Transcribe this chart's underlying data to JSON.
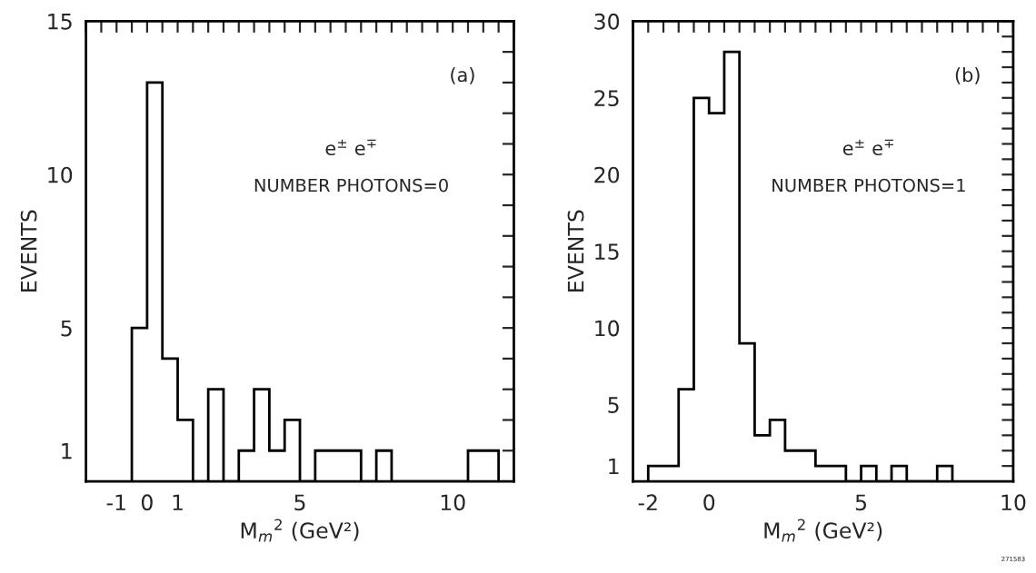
{
  "chart_data": [
    {
      "type": "histogram",
      "xlabel": "M$_{m}$$^{2}$ (GeV²)",
      "ylabel": "EVENTS",
      "annotations": [
        "(a)",
        "e$^{±}$ e$^{∓}$",
        "NUMBER PHOTONS=0"
      ],
      "bins": [
        -0.5,
        0,
        0.5,
        1,
        1.5,
        2,
        2.5,
        3,
        3.5,
        4,
        4.5,
        5,
        5.5,
        6,
        6.5,
        7,
        7.5,
        8,
        8.5,
        9,
        9.5,
        10,
        10.5,
        11,
        11.5
      ],
      "values": [
        5,
        13,
        4,
        2,
        0,
        3,
        0,
        1,
        3,
        1,
        2,
        0,
        1,
        1,
        1,
        0,
        1,
        0,
        0,
        0,
        0,
        0,
        1,
        1
      ],
      "color": "#000000",
      "xlim": [
        -2,
        12
      ],
      "ylim": [
        0,
        15
      ],
      "xticks": [
        {
          "value": -2,
          "label": null
        },
        {
          "value": -1.5,
          "label": null
        },
        -1,
        {
          "value": -0.5,
          "label": null
        },
        0,
        {
          "value": 0.5,
          "label": null
        },
        1,
        {
          "value": 1.5,
          "label": null
        },
        {
          "value": 2,
          "label": null
        },
        {
          "value": 2.5,
          "label": null
        },
        {
          "value": 3,
          "label": null
        },
        {
          "value": 3.5,
          "label": null
        },
        {
          "value": 4,
          "label": null
        },
        {
          "value": 4.5,
          "label": null
        },
        5,
        {
          "value": 5.5,
          "label": null
        },
        {
          "value": 6,
          "label": null
        },
        {
          "value": 6.5,
          "label": null
        },
        {
          "value": 7,
          "label": null
        },
        {
          "value": 7.5,
          "label": null
        },
        {
          "value": 8,
          "label": null
        },
        {
          "value": 8.5,
          "label": null
        },
        {
          "value": 9,
          "label": null
        },
        {
          "value": 9.5,
          "label": null
        },
        10,
        {
          "value": 10.5,
          "label": null
        },
        {
          "value": 11,
          "label": null
        },
        {
          "value": 11.5,
          "label": null
        },
        {
          "value": 12,
          "label": null
        }
      ],
      "yticks": [
        1,
        {
          "value": 2,
          "label": null
        },
        {
          "value": 3,
          "label": null
        },
        {
          "value": 4,
          "label": null
        },
        5,
        {
          "value": 6,
          "label": null
        },
        {
          "value": 7,
          "label": null
        },
        {
          "value": 8,
          "label": null
        },
        {
          "value": 9,
          "label": null
        },
        10,
        {
          "value": 11,
          "label": null
        },
        {
          "value": 12,
          "label": null
        },
        {
          "value": 13,
          "label": null
        },
        {
          "value": 14,
          "label": null
        },
        15
      ],
      "grid": false,
      "legend": false
    },
    {
      "type": "histogram",
      "xlabel": "M$_{m}$$^{2}$ (GeV²)",
      "ylabel": "EVENTS",
      "annotations": [
        "(b)",
        "e$^{±}$ e$^{∓}$",
        "NUMBER PHOTONS=1",
        "271583"
      ],
      "bins": [
        -2,
        -1.5,
        -1,
        -0.5,
        0,
        0.5,
        1,
        1.5,
        2,
        2.5,
        3,
        3.5,
        4,
        4.5,
        5,
        5.5,
        6,
        6.5,
        7,
        7.5,
        8
      ],
      "values": [
        1,
        1,
        6,
        25,
        24,
        28,
        9,
        3,
        4,
        2,
        2,
        1,
        1,
        0,
        1,
        0,
        1,
        0,
        0,
        1
      ],
      "color": "#000000",
      "xlim": [
        -2.5,
        10
      ],
      "ylim": [
        0,
        30
      ],
      "xticks": [
        {
          "value": -2.5,
          "label": null
        },
        -2,
        {
          "value": -1.5,
          "label": null
        },
        {
          "value": -1,
          "label": null
        },
        {
          "value": -0.5,
          "label": null
        },
        0,
        {
          "value": 0.5,
          "label": null
        },
        {
          "value": 1,
          "label": null
        },
        {
          "value": 1.5,
          "label": null
        },
        {
          "value": 2,
          "label": null
        },
        {
          "value": 2.5,
          "label": null
        },
        {
          "value": 3,
          "label": null
        },
        {
          "value": 3.5,
          "label": null
        },
        {
          "value": 4,
          "label": null
        },
        {
          "value": 4.5,
          "label": null
        },
        5,
        {
          "value": 5.5,
          "label": null
        },
        {
          "value": 6,
          "label": null
        },
        {
          "value": 6.5,
          "label": null
        },
        {
          "value": 7,
          "label": null
        },
        {
          "value": 7.5,
          "label": null
        },
        {
          "value": 8,
          "label": null
        },
        {
          "value": 8.5,
          "label": null
        },
        {
          "value": 9,
          "label": null
        },
        {
          "value": 9.5,
          "label": null
        },
        10
      ],
      "yticks": [
        1,
        {
          "value": 2,
          "label": null
        },
        {
          "value": 3,
          "label": null
        },
        {
          "value": 4,
          "label": null
        },
        5,
        {
          "value": 6,
          "label": null
        },
        {
          "value": 7,
          "label": null
        },
        {
          "value": 8,
          "label": null
        },
        {
          "value": 9,
          "label": null
        },
        10,
        {
          "value": 11,
          "label": null
        },
        {
          "value": 12,
          "label": null
        },
        {
          "value": 13,
          "label": null
        },
        {
          "value": 14,
          "label": null
        },
        15,
        {
          "value": 16,
          "label": null
        },
        {
          "value": 17,
          "label": null
        },
        {
          "value": 18,
          "label": null
        },
        {
          "value": 19,
          "label": null
        },
        20,
        {
          "value": 21,
          "label": null
        },
        {
          "value": 22,
          "label": null
        },
        {
          "value": 23,
          "label": null
        },
        {
          "value": 24,
          "label": null
        },
        25,
        {
          "value": 26,
          "label": null
        },
        {
          "value": 27,
          "label": null
        },
        {
          "value": 28,
          "label": null
        },
        {
          "value": 29,
          "label": null
        },
        30
      ],
      "grid": false,
      "legend": false
    }
  ]
}
